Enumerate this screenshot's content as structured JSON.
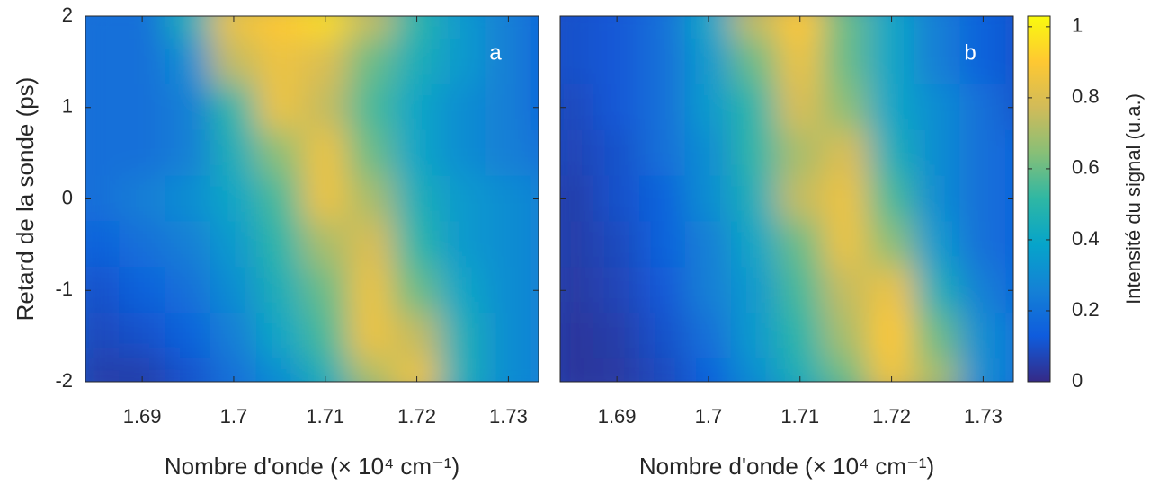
{
  "chart_data": [
    {
      "type": "heatmap",
      "panel_label": "a",
      "xlabel": "Nombre d'onde (× 10⁴ cm⁻¹)",
      "ylabel": "Retard de la sonde (ps)",
      "x": [
        1.685,
        1.69,
        1.695,
        1.7,
        1.705,
        1.71,
        1.715,
        1.72,
        1.725,
        1.73,
        1.735
      ],
      "y": [
        2,
        1.5,
        1,
        0.5,
        0,
        -0.5,
        -1,
        -1.5,
        -2
      ],
      "z": [
        [
          0.2,
          0.2,
          0.45,
          0.85,
          0.9,
          0.95,
          0.75,
          0.5,
          0.35,
          0.25,
          0.15
        ],
        [
          0.2,
          0.2,
          0.3,
          0.75,
          0.85,
          0.8,
          0.6,
          0.45,
          0.35,
          0.25,
          0.15
        ],
        [
          0.2,
          0.2,
          0.25,
          0.5,
          0.85,
          0.75,
          0.55,
          0.4,
          0.3,
          0.25,
          0.15
        ],
        [
          0.2,
          0.2,
          0.25,
          0.45,
          0.65,
          0.85,
          0.6,
          0.4,
          0.3,
          0.25,
          0.2
        ],
        [
          0.2,
          0.25,
          0.3,
          0.4,
          0.55,
          0.85,
          0.7,
          0.45,
          0.35,
          0.3,
          0.25
        ],
        [
          0.15,
          0.2,
          0.25,
          0.35,
          0.5,
          0.7,
          0.8,
          0.5,
          0.35,
          0.3,
          0.25
        ],
        [
          0.1,
          0.15,
          0.2,
          0.3,
          0.45,
          0.6,
          0.85,
          0.6,
          0.4,
          0.3,
          0.25
        ],
        [
          0.08,
          0.1,
          0.15,
          0.25,
          0.4,
          0.55,
          0.85,
          0.75,
          0.45,
          0.3,
          0.25
        ],
        [
          0.05,
          0.05,
          0.1,
          0.2,
          0.3,
          0.45,
          0.7,
          0.85,
          0.45,
          0.3,
          0.25
        ]
      ],
      "xlim": [
        1.6838,
        1.7333
      ],
      "ylim": [
        -2,
        2
      ],
      "xticks": [
        1.69,
        1.7,
        1.71,
        1.72,
        1.73
      ],
      "yticks": [
        -2,
        -1,
        0,
        1,
        2
      ]
    },
    {
      "type": "heatmap",
      "panel_label": "b",
      "xlabel": "Nombre d'onde (× 10⁴ cm⁻¹)",
      "x": [
        1.685,
        1.69,
        1.695,
        1.7,
        1.705,
        1.71,
        1.715,
        1.72,
        1.725,
        1.73,
        1.735
      ],
      "y": [
        2,
        1.5,
        1,
        0.5,
        0,
        -0.5,
        -1,
        -1.5,
        -2
      ],
      "z": [
        [
          0.1,
          0.12,
          0.2,
          0.4,
          0.75,
          0.9,
          0.6,
          0.4,
          0.25,
          0.15,
          0.1
        ],
        [
          0.1,
          0.12,
          0.2,
          0.35,
          0.6,
          0.85,
          0.6,
          0.4,
          0.25,
          0.15,
          0.1
        ],
        [
          0.08,
          0.12,
          0.2,
          0.35,
          0.5,
          0.8,
          0.65,
          0.4,
          0.3,
          0.2,
          0.1
        ],
        [
          0.07,
          0.1,
          0.2,
          0.3,
          0.5,
          0.7,
          0.8,
          0.45,
          0.3,
          0.2,
          0.15
        ],
        [
          0.05,
          0.1,
          0.15,
          0.3,
          0.45,
          0.75,
          0.85,
          0.55,
          0.3,
          0.2,
          0.15
        ],
        [
          0.05,
          0.08,
          0.15,
          0.25,
          0.4,
          0.6,
          0.85,
          0.65,
          0.35,
          0.2,
          0.15
        ],
        [
          0.04,
          0.07,
          0.12,
          0.25,
          0.35,
          0.55,
          0.75,
          0.85,
          0.45,
          0.25,
          0.15
        ],
        [
          0.03,
          0.05,
          0.1,
          0.2,
          0.35,
          0.5,
          0.7,
          0.9,
          0.6,
          0.3,
          0.2
        ],
        [
          0.03,
          0.04,
          0.08,
          0.15,
          0.3,
          0.45,
          0.6,
          0.85,
          0.7,
          0.3,
          0.2
        ]
      ],
      "xlim": [
        1.6838,
        1.7333
      ],
      "ylim": [
        -2,
        2
      ],
      "xticks": [
        1.69,
        1.7,
        1.71,
        1.72,
        1.73
      ],
      "yticks": [
        -2,
        -1,
        0,
        1,
        2
      ]
    }
  ],
  "colorbar": {
    "label": "Intensité du signal (u.a.)",
    "clim": [
      0,
      1.03
    ],
    "ticks": [
      0,
      0.2,
      0.4,
      0.6,
      0.8,
      1
    ],
    "colors": [
      "#352a87",
      "#0f5cdd",
      "#1481d6",
      "#06a4ca",
      "#2eb7a4",
      "#87bf77",
      "#d1bb59",
      "#fec832",
      "#f9fb0e"
    ]
  }
}
